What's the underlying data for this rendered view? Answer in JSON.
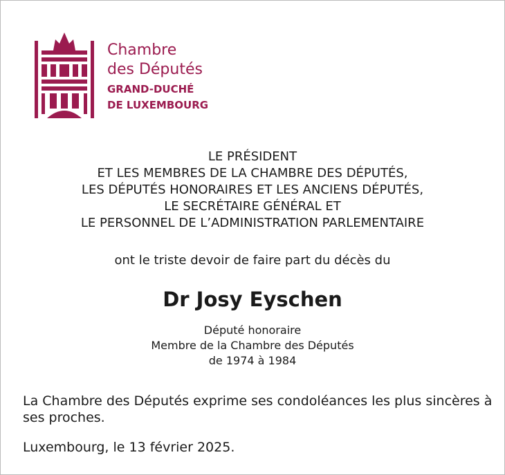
{
  "colors": {
    "brand": "#9b1b4f"
  },
  "logo": {
    "lines": [
      "Chambre",
      "des Députés",
      "GRAND-DUCHÉ",
      "DE LUXEMBOURG"
    ],
    "icon": "chamber-building-icon"
  },
  "header_lines": [
    "LE PRÉSIDENT",
    "ET LES MEMBRES DE LA CHAMBRE DES DÉPUTÉS,",
    "LES DÉPUTÉS HONORAIRES ET LES ANCIENS DÉPUTÉS,",
    "LE SECRÉTAIRE GÉNÉRAL ET",
    "LE PERSONNEL DE L’ADMINISTRATION PARLEMENTAIRE"
  ],
  "intro": "ont le triste devoir de faire part du décès du",
  "name": "Dr Josy Eyschen",
  "subtitle_lines": [
    "Député honoraire",
    "Membre de la Chambre des Députés",
    "de 1974 à 1984"
  ],
  "condolences": "La Chambre des Députés exprime ses condoléances les plus sincères à ses proches.",
  "place_date": "Luxembourg, le 13 février 2025."
}
